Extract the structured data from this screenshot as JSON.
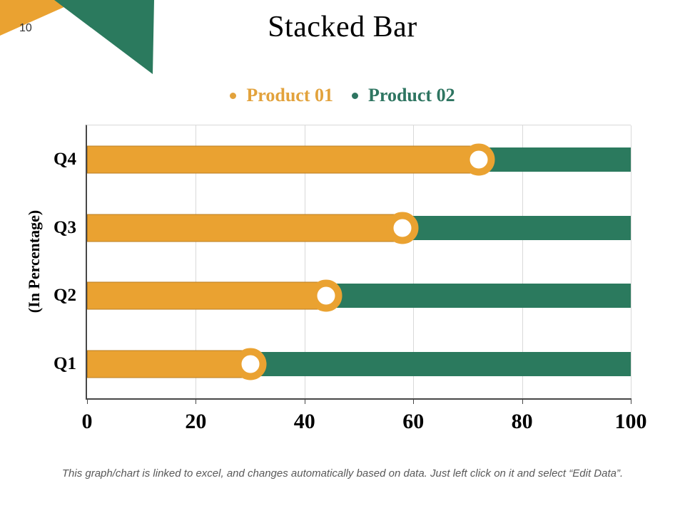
{
  "slide": {
    "page_number": "10",
    "title": "Stacked Bar",
    "footer": "This graph/chart is linked to excel, and changes automatically based on data. Just left click on it and select “Edit Data”."
  },
  "legend": {
    "items": [
      {
        "label": "Product 01",
        "color": "#e2a23c"
      },
      {
        "label": "Product 02",
        "color": "#2e7561"
      }
    ]
  },
  "decoration": {
    "ribbon_orange": "#eaa231",
    "ribbon_green": "#2b7a5e"
  },
  "chart_data": {
    "type": "bar",
    "orientation": "horizontal",
    "stacked": true,
    "title": "Stacked Bar",
    "ylabel": "(In Percentage)",
    "categories": [
      "Q1",
      "Q2",
      "Q3",
      "Q4"
    ],
    "series": [
      {
        "name": "Product 01",
        "color": "#eaa231",
        "values": [
          30,
          44,
          58,
          72
        ]
      },
      {
        "name": "Product 02",
        "color": "#2b7a5e",
        "values": [
          70,
          56,
          42,
          28
        ]
      }
    ],
    "x_ticks": [
      0,
      20,
      40,
      60,
      80,
      100
    ],
    "xlim": [
      0,
      100
    ],
    "gridlines": "vertical-major",
    "marker_style": "orange ring with white center at stack boundary",
    "legend_position": "top-center"
  }
}
